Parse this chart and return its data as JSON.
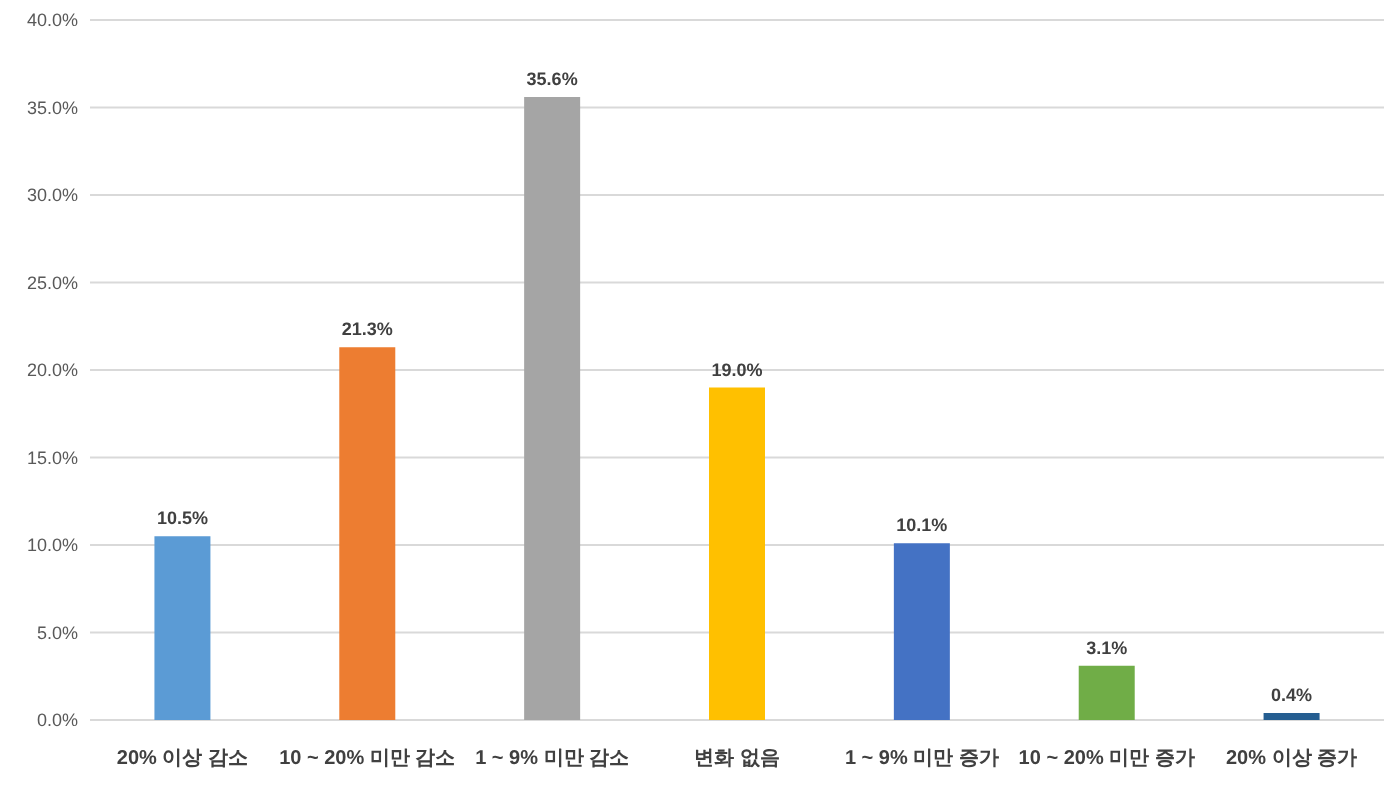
{
  "chart_data": {
    "type": "bar",
    "categories": [
      "20% 이상 감소",
      "10 ~ 20% 미만 감소",
      "1 ~ 9% 미만 감소",
      "변화 없음",
      "1 ~ 9% 미만 증가",
      "10 ~ 20% 미만 증가",
      "20% 이상 증가"
    ],
    "values": [
      10.5,
      21.3,
      35.6,
      19.0,
      10.1,
      3.1,
      0.4
    ],
    "colors": [
      "#5b9bd5",
      "#ed7d31",
      "#a5a5a5",
      "#ffc000",
      "#4472c4",
      "#70ad47",
      "#255e91"
    ],
    "value_labels": [
      "10.5%",
      "21.3%",
      "35.6%",
      "19.0%",
      "10.1%",
      "3.1%",
      "0.4%"
    ],
    "ylim": [
      0,
      40
    ],
    "yticks": [
      {
        "value": 0,
        "label": "0.0%"
      },
      {
        "value": 5,
        "label": "5.0%"
      },
      {
        "value": 10,
        "label": "10.0%"
      },
      {
        "value": 15,
        "label": "15.0%"
      },
      {
        "value": 20,
        "label": "20.0%"
      },
      {
        "value": 25,
        "label": "25.0%"
      },
      {
        "value": 30,
        "label": "30.0%"
      },
      {
        "value": 35,
        "label": "35.0%"
      },
      {
        "value": 40,
        "label": "40.0%"
      }
    ],
    "grid": "y"
  }
}
